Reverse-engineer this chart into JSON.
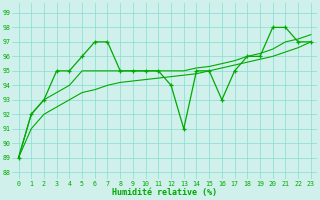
{
  "x": [
    0,
    1,
    2,
    3,
    4,
    5,
    6,
    7,
    8,
    9,
    10,
    11,
    12,
    13,
    14,
    15,
    16,
    17,
    18,
    19,
    20,
    21,
    22,
    23
  ],
  "y_jagged": [
    89,
    92,
    93,
    95,
    95,
    96,
    97,
    97,
    95,
    95,
    95,
    95,
    94,
    91,
    95,
    95,
    93,
    95,
    96,
    96,
    98,
    98,
    97,
    97
  ],
  "y_smooth_upper": [
    89,
    92,
    93,
    93.5,
    94,
    95,
    95,
    95,
    95,
    95,
    95,
    95,
    95,
    95,
    95.2,
    95.3,
    95.5,
    95.7,
    96,
    96.2,
    96.5,
    97,
    97.2,
    97.5
  ],
  "y_smooth_lower": [
    89,
    91,
    92,
    92.5,
    93,
    93.5,
    93.7,
    94,
    94.2,
    94.3,
    94.4,
    94.5,
    94.6,
    94.7,
    94.8,
    95,
    95.2,
    95.4,
    95.6,
    95.8,
    96,
    96.3,
    96.6,
    97
  ],
  "background_color": "#cff0eb",
  "grid_color": "#88ddd0",
  "line_color": "#00aa00",
  "ylabel_values": [
    88,
    89,
    90,
    91,
    92,
    93,
    94,
    95,
    96,
    97,
    98,
    99
  ],
  "xlabel": "Humidité relative (%)",
  "ylim": [
    87.5,
    99.7
  ],
  "xlim": [
    -0.5,
    23.5
  ],
  "figsize": [
    3.2,
    2.0
  ],
  "dpi": 100
}
